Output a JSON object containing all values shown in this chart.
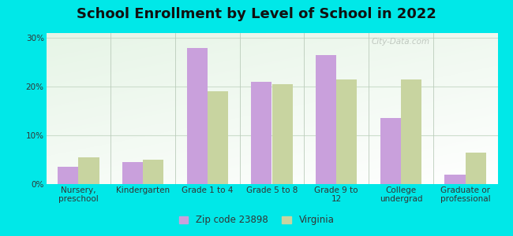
{
  "title": "School Enrollment by Level of School in 2022",
  "categories": [
    "Nursery,\npreschool",
    "Kindergarten",
    "Grade 1 to 4",
    "Grade 5 to 8",
    "Grade 9 to\n12",
    "College\nundergrad",
    "Graduate or\nprofessional"
  ],
  "zip_values": [
    3.5,
    4.5,
    28.0,
    21.0,
    26.5,
    13.5,
    2.0
  ],
  "virginia_values": [
    5.5,
    5.0,
    19.0,
    20.5,
    21.5,
    21.5,
    6.5
  ],
  "zip_color": "#c9a0dc",
  "virginia_color": "#c8d4a0",
  "background_outer": "#00e8e8",
  "background_inner_color": "#d4edda",
  "grid_color": "#e0ece0",
  "yticks": [
    0,
    10,
    20,
    30
  ],
  "ylim": [
    0,
    31
  ],
  "legend_zip_label": "Zip code 23898",
  "legend_virginia_label": "Virginia",
  "title_fontsize": 13,
  "tick_fontsize": 7.5,
  "legend_fontsize": 8.5,
  "bar_width": 0.32,
  "watermark_text": "City-Data.com"
}
